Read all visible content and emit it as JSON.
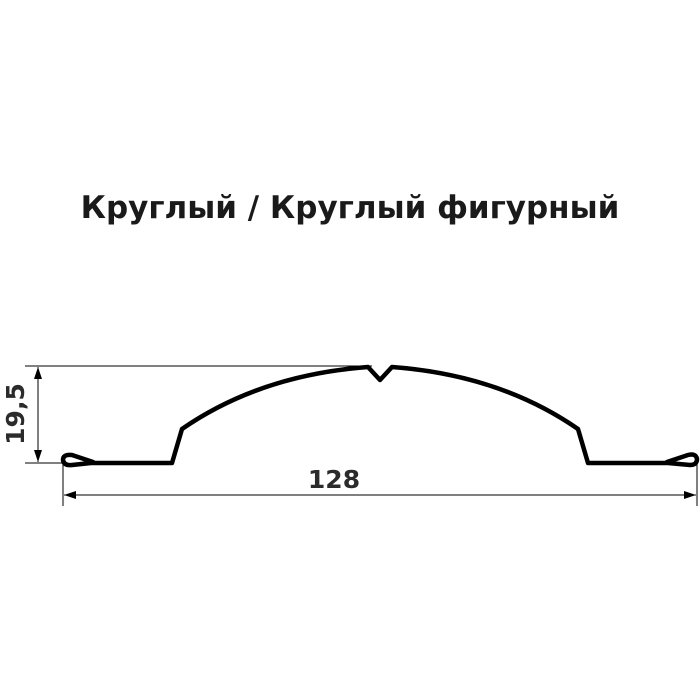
{
  "title": "Круглый / Круглый фигурный",
  "dimensions": {
    "height_label": "19,5",
    "width_label": "128"
  },
  "colors": {
    "profile": "#000000",
    "dimension_lines": "#000000",
    "text": "#2b2b2b"
  }
}
